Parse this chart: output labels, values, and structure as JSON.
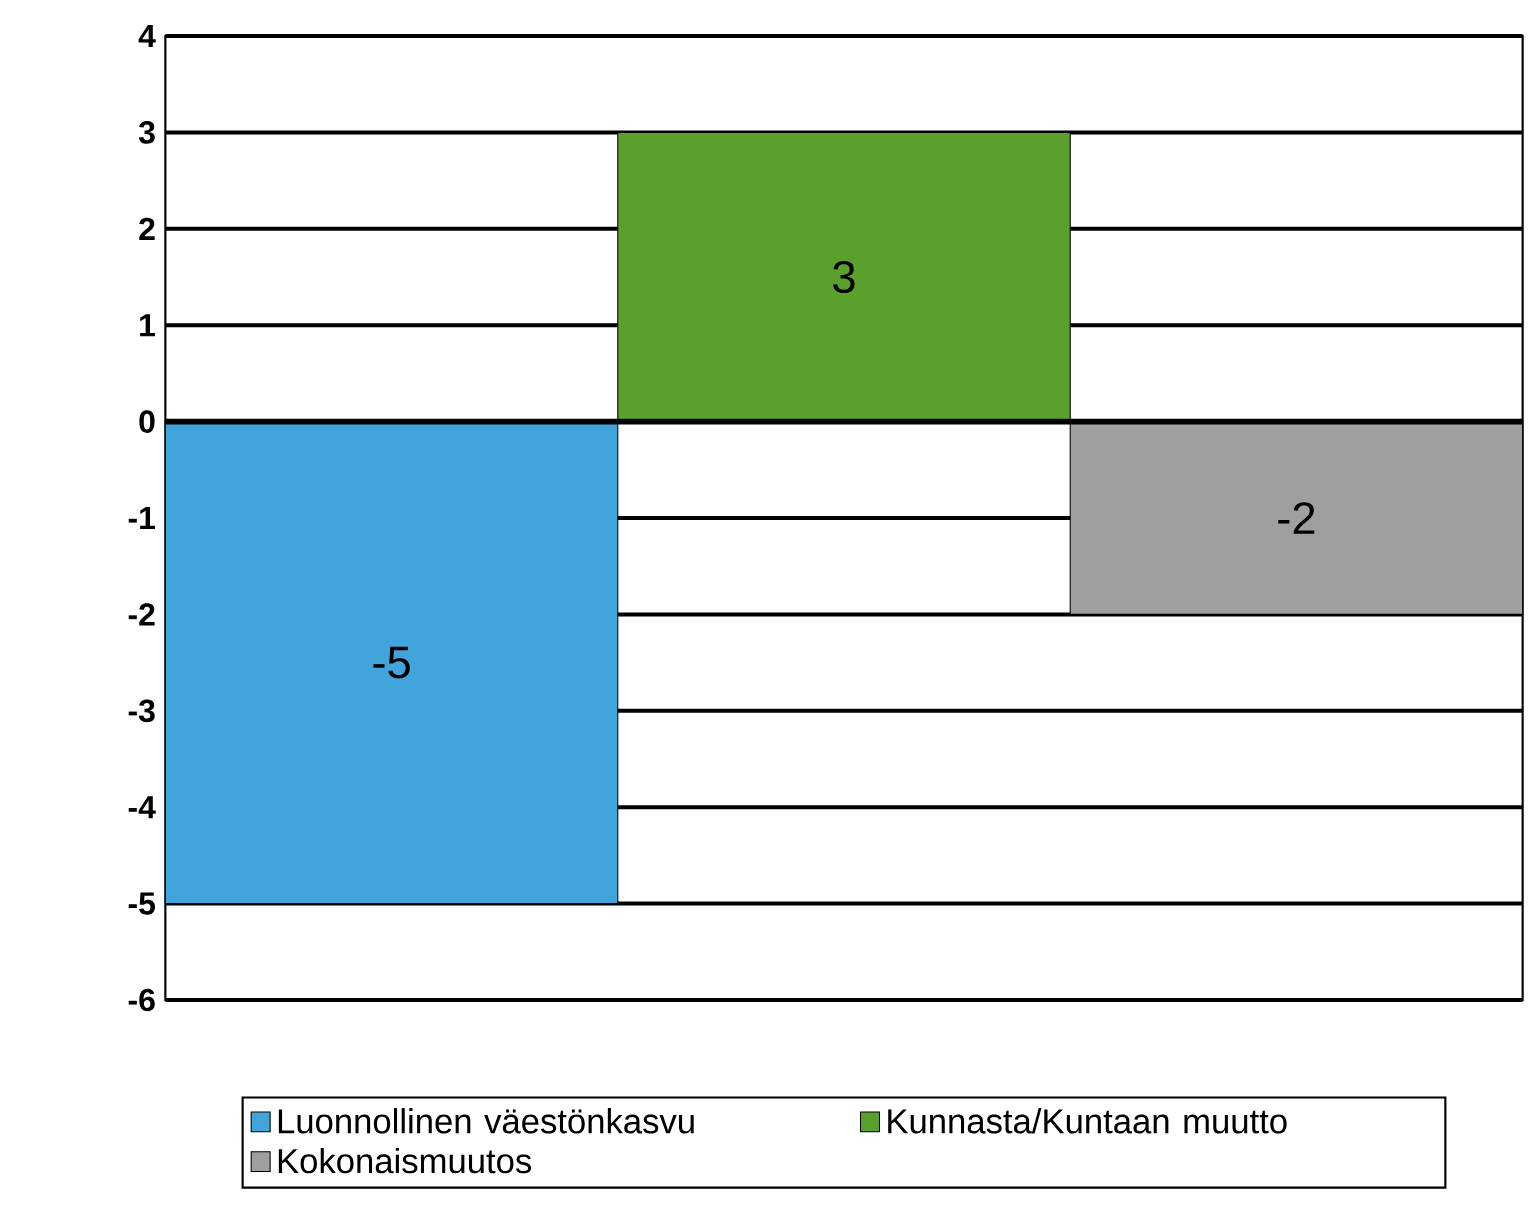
{
  "chart_data": {
    "type": "bar",
    "categories": [
      null,
      null,
      null
    ],
    "series": [
      {
        "name": "Luonnollinen väestönkasvu",
        "color": "#41a5dc",
        "values": [
          -5,
          null,
          null
        ]
      },
      {
        "name": "Kunnasta/Kuntaan muutto",
        "color": "#5aa02c",
        "values": [
          null,
          3,
          null
        ]
      },
      {
        "name": "Kokonaismuutos",
        "color": "#a09fa0",
        "values": [
          null,
          null,
          -2
        ]
      }
    ],
    "ylim": [
      -6,
      4
    ],
    "yticks": [
      -6,
      -5,
      -4,
      -3,
      -2,
      -1,
      0,
      1,
      2,
      3,
      4
    ],
    "grid": "y",
    "legend": "bottom",
    "data_labels": true,
    "tick_labels": "y"
  }
}
